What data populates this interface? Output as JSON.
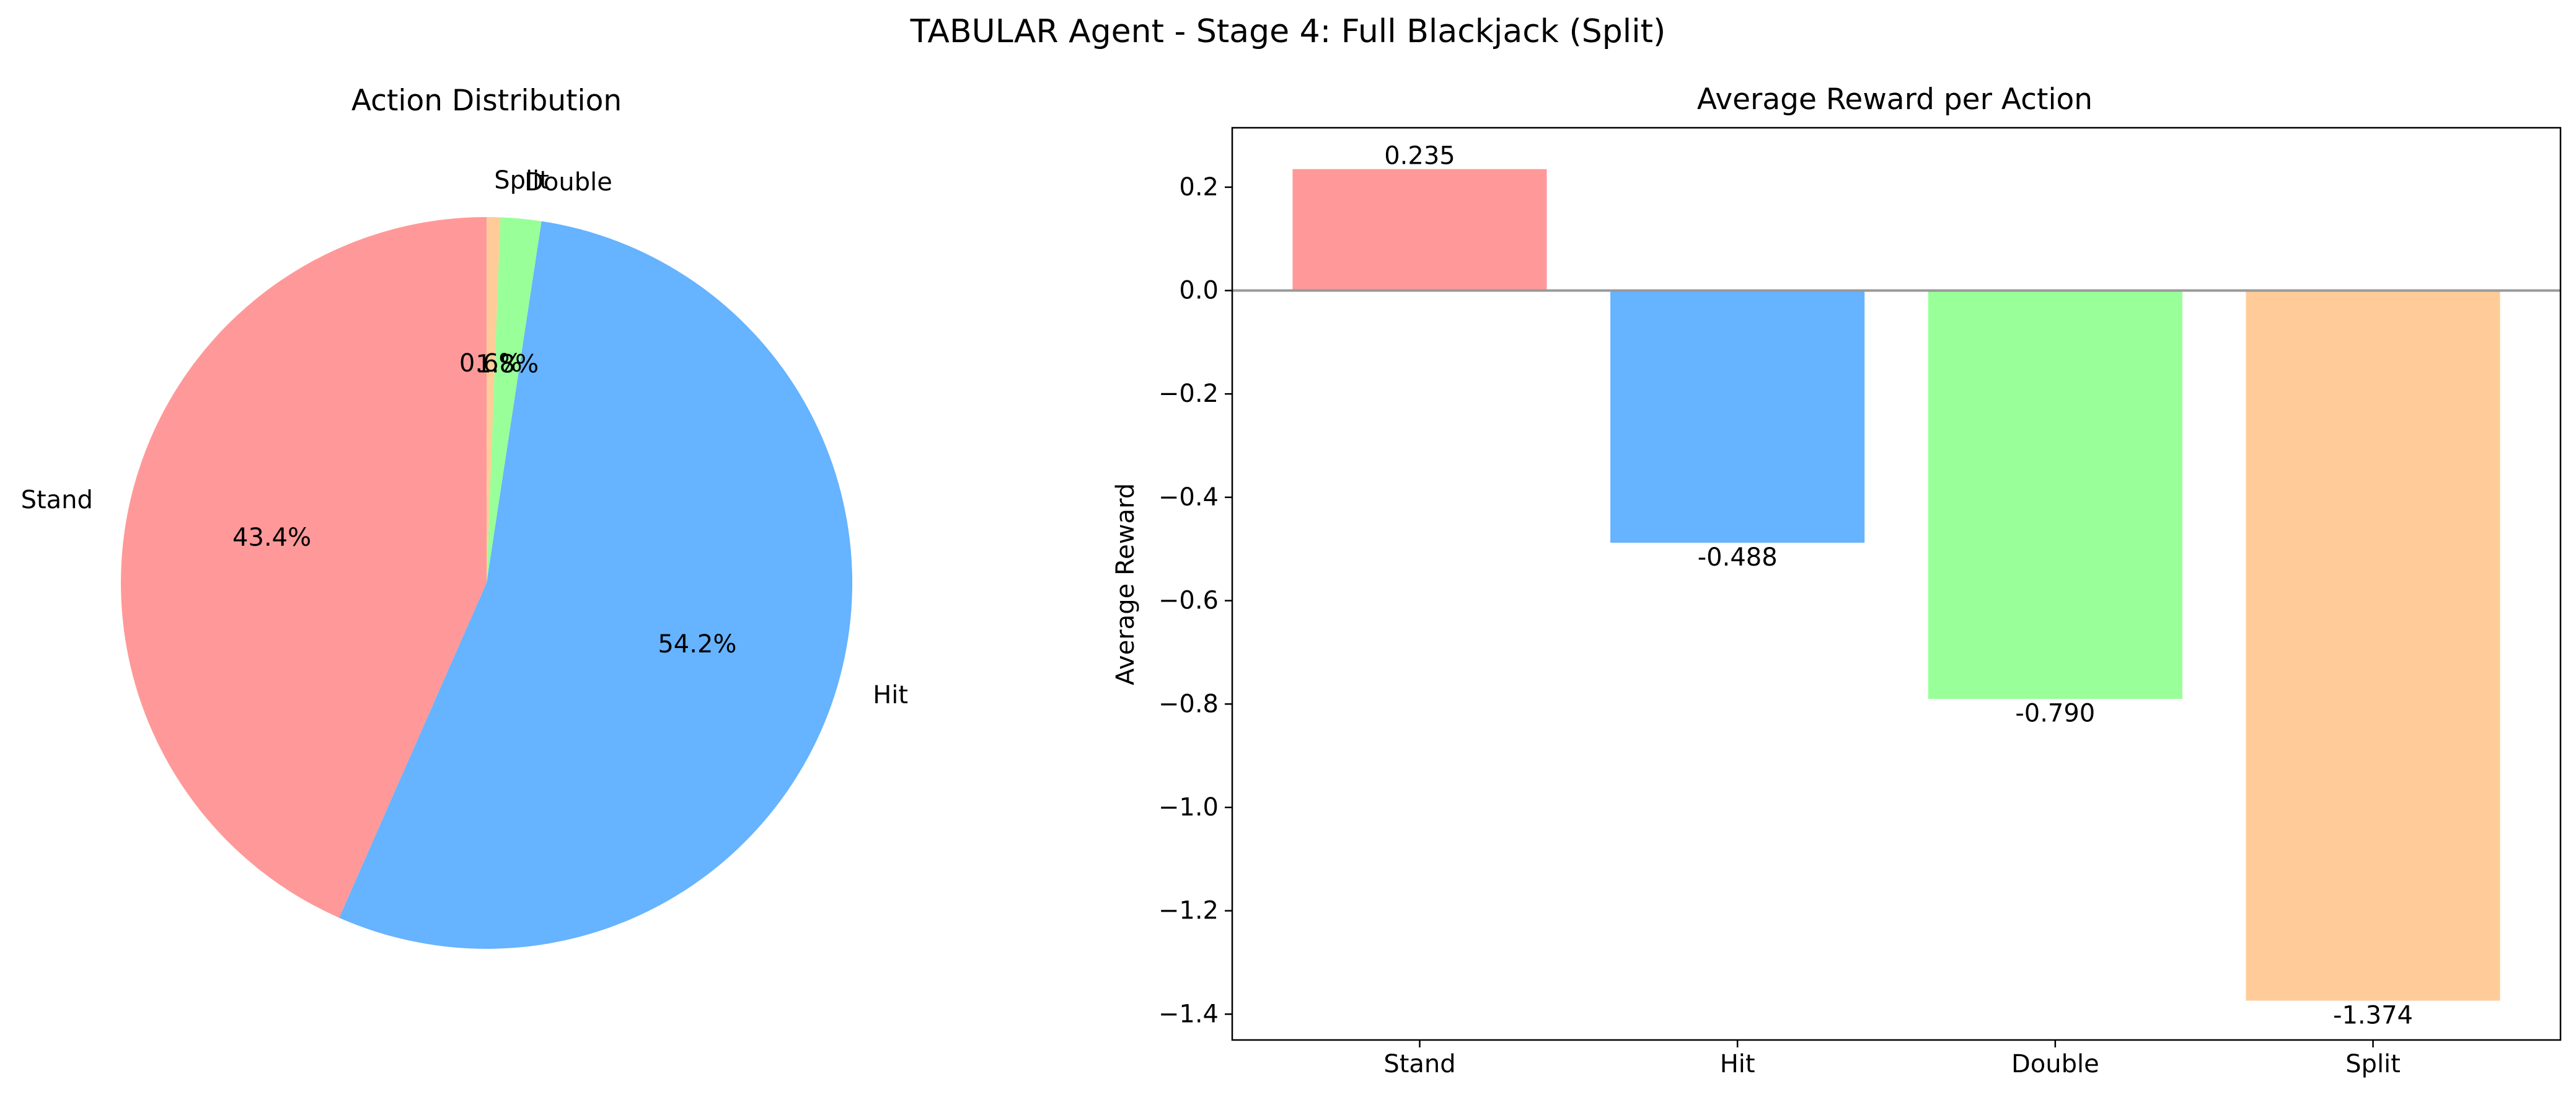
{
  "figure": {
    "suptitle": "TABULAR Agent - Stage 4: Full Blackjack (Split)"
  },
  "chart_data": [
    {
      "type": "pie",
      "title": "Action Distribution",
      "start_angle": "90°, counter-clockwise",
      "slices": [
        {
          "label": "Stand",
          "value": 43.4,
          "pct_label": "43.4%",
          "color": "#ff9999"
        },
        {
          "label": "Hit",
          "value": 54.2,
          "pct_label": "54.2%",
          "color": "#66b3ff"
        },
        {
          "label": "Double",
          "value": 1.8,
          "pct_label": "1.8%",
          "color": "#99ff99"
        },
        {
          "label": "Split",
          "value": 0.6,
          "pct_label": "0.6%",
          "color": "#ffcc99"
        }
      ]
    },
    {
      "type": "bar",
      "title": "Average Reward per Action",
      "xlabel": "",
      "ylabel": "Average Reward",
      "categories": [
        "Stand",
        "Hit",
        "Double",
        "Split"
      ],
      "values": [
        0.235,
        -0.488,
        -0.79,
        -1.374
      ],
      "value_labels": [
        "0.235",
        "-0.488",
        "-0.790",
        "-1.374"
      ],
      "colors": [
        "#ff9999",
        "#66b3ff",
        "#99ff99",
        "#ffcc99"
      ],
      "ylim": [
        -1.45,
        0.315
      ],
      "yticks": [
        0.2,
        0.0,
        -0.2,
        -0.4,
        -0.6,
        -0.8,
        -1.0,
        -1.2,
        -1.4
      ],
      "ytick_labels": [
        "0.2",
        "0.0",
        "−0.2",
        "−0.4",
        "−0.6",
        "−0.8",
        "−1.0",
        "−1.2",
        "−1.4"
      ],
      "zero_line": true,
      "grid": false
    }
  ]
}
